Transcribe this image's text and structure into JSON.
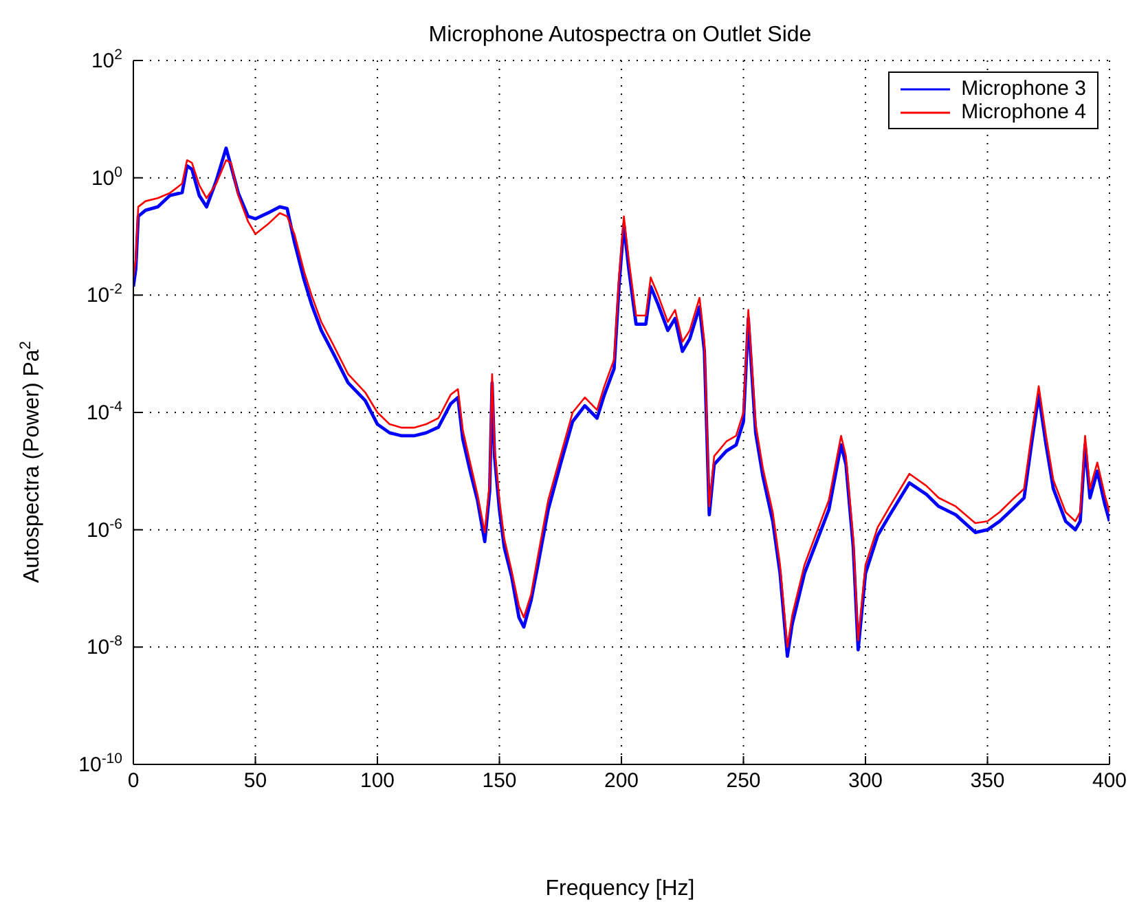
{
  "chart_data": {
    "type": "line",
    "title": "Microphone Autospectra on Outlet Side",
    "xlabel": "Frequency [Hz]",
    "ylabel": "Autospectra (Power) Pa$^{2}$",
    "log": "y",
    "grid": true,
    "legend": "top right",
    "marker": "none",
    "line_style": "solid",
    "xlim": [
      0,
      400
    ],
    "xticks": [
      0,
      50,
      100,
      150,
      200,
      250,
      300,
      350,
      400
    ],
    "ylim": [
      1e-10,
      100
    ],
    "yticks": [
      {
        "value": 1e-10,
        "label": "10$^{-10}$"
      },
      {
        "value": 1e-08,
        "label": "10$^{-8}$"
      },
      {
        "value": 1e-06,
        "label": "10$^{-6}$"
      },
      {
        "value": 0.0001,
        "label": "10$^{-4}$"
      },
      {
        "value": 0.01,
        "label": "10$^{-2}$"
      },
      {
        "value": 1,
        "label": "10$^{0}$"
      },
      {
        "value": 100,
        "label": "10$^{2}$"
      }
    ],
    "series": [
      {
        "name": "Microphone 3",
        "color": "#0000ff",
        "x": [
          0,
          1,
          2,
          5,
          10,
          15,
          20,
          22,
          24,
          27,
          30,
          34,
          38,
          40,
          43,
          47,
          50,
          55,
          60,
          63,
          66,
          70,
          73,
          77,
          82,
          88,
          95,
          100,
          105,
          110,
          115,
          120,
          125,
          130,
          133,
          135,
          138,
          141,
          144,
          146,
          147,
          148,
          150,
          152,
          155,
          158,
          160,
          163,
          166,
          170,
          175,
          180,
          185,
          190,
          193,
          197,
          199,
          201,
          203,
          206,
          210,
          212,
          215,
          219,
          222,
          225,
          228,
          232,
          234,
          236,
          238,
          243,
          247,
          250,
          252,
          255,
          258,
          262,
          265,
          268,
          270,
          275,
          280,
          285,
          290,
          292,
          295,
          297,
          300,
          305,
          310,
          318,
          325,
          330,
          337,
          345,
          350,
          355,
          360,
          365,
          368,
          371,
          374,
          377,
          382,
          386,
          388,
          390,
          392,
          395,
          398,
          400
        ],
        "values": [
          0.014,
          0.028,
          0.22,
          0.28,
          0.32,
          0.5,
          0.56,
          1.6,
          1.4,
          0.5,
          0.32,
          0.9,
          3.2,
          1.6,
          0.55,
          0.22,
          0.2,
          0.25,
          0.32,
          0.3,
          0.08,
          0.018,
          0.007,
          0.0025,
          0.001,
          0.00032,
          0.00016,
          6.3e-05,
          4.5e-05,
          4e-05,
          4e-05,
          4.5e-05,
          5.6e-05,
          0.00014,
          0.00018,
          3.5e-05,
          1e-05,
          3.2e-06,
          6.3e-07,
          4.5e-06,
          0.00032,
          1.8e-05,
          2.2e-06,
          5e-07,
          1.6e-07,
          3.2e-08,
          2.2e-08,
          6.3e-08,
          2.8e-07,
          2.2e-06,
          1.3e-05,
          7e-05,
          0.00013,
          8e-05,
          0.0002,
          0.00056,
          0.014,
          0.16,
          0.028,
          0.0032,
          0.0032,
          0.014,
          0.007,
          0.0025,
          0.004,
          0.0011,
          0.0018,
          0.0063,
          0.0011,
          1.8e-06,
          1.3e-05,
          2.2e-05,
          2.8e-05,
          7e-05,
          0.004,
          4.5e-05,
          8e-06,
          1.4e-06,
          1.8e-07,
          7e-09,
          2.5e-08,
          1.8e-07,
          6.3e-07,
          2.2e-06,
          2.8e-05,
          1.3e-05,
          5e-07,
          9e-09,
          1.8e-07,
          8e-07,
          1.8e-06,
          6.3e-06,
          4e-06,
          2.5e-06,
          1.8e-06,
          9e-07,
          1e-06,
          1.4e-06,
          2.2e-06,
          3.5e-06,
          2.8e-05,
          0.0002,
          2.8e-05,
          5e-06,
          1.4e-06,
          1e-06,
          1.4e-06,
          2.8e-05,
          3.5e-06,
          1e-05,
          2.8e-06,
          1.4e-06
        ]
      },
      {
        "name": "Microphone 4",
        "color": "#ff0000",
        "x": [
          0,
          1,
          2,
          5,
          10,
          15,
          20,
          22,
          24,
          27,
          30,
          34,
          38,
          40,
          43,
          47,
          50,
          55,
          60,
          63,
          66,
          70,
          73,
          77,
          82,
          88,
          95,
          100,
          105,
          110,
          115,
          120,
          125,
          130,
          133,
          135,
          138,
          141,
          144,
          146,
          147,
          148,
          150,
          152,
          155,
          158,
          160,
          163,
          166,
          170,
          175,
          180,
          185,
          190,
          193,
          197,
          199,
          201,
          203,
          206,
          210,
          212,
          215,
          219,
          222,
          225,
          228,
          232,
          234,
          236,
          238,
          243,
          247,
          250,
          252,
          255,
          258,
          262,
          265,
          268,
          270,
          275,
          280,
          285,
          290,
          292,
          295,
          297,
          300,
          305,
          310,
          318,
          325,
          330,
          337,
          345,
          350,
          355,
          360,
          365,
          368,
          371,
          374,
          377,
          382,
          386,
          388,
          390,
          392,
          395,
          398,
          400
        ],
        "values": [
          0.02,
          0.04,
          0.32,
          0.4,
          0.45,
          0.55,
          0.8,
          2,
          1.8,
          0.75,
          0.45,
          0.8,
          2,
          1.8,
          0.5,
          0.18,
          0.11,
          0.16,
          0.25,
          0.22,
          0.11,
          0.025,
          0.01,
          0.0035,
          0.0014,
          0.00045,
          0.00022,
          0.0001,
          6.3e-05,
          5.5e-05,
          5.5e-05,
          6.3e-05,
          8e-05,
          0.0002,
          0.00025,
          5e-05,
          1.4e-05,
          4e-06,
          9e-07,
          6.3e-06,
          0.00045,
          2.5e-05,
          3.2e-06,
          7e-07,
          2e-07,
          5e-08,
          3.2e-08,
          8e-08,
          4e-07,
          3.2e-06,
          1.8e-05,
          0.0001,
          0.00018,
          0.00011,
          0.00028,
          0.0008,
          0.02,
          0.22,
          0.04,
          0.0045,
          0.0045,
          0.02,
          0.01,
          0.0035,
          0.0056,
          0.0016,
          0.0025,
          0.009,
          0.0016,
          2.5e-06,
          1.8e-05,
          3.2e-05,
          4e-05,
          0.0001,
          0.0056,
          6.3e-05,
          1.1e-05,
          2e-06,
          2.5e-07,
          1e-08,
          3.5e-08,
          2.5e-07,
          9e-07,
          3.2e-06,
          4e-05,
          1.8e-05,
          7e-07,
          1.3e-08,
          2.5e-07,
          1.1e-06,
          2.5e-06,
          9e-06,
          5.6e-06,
          3.5e-06,
          2.5e-06,
          1.3e-06,
          1.4e-06,
          2e-06,
          3.2e-06,
          5e-06,
          4e-05,
          0.00028,
          4e-05,
          7e-06,
          2e-06,
          1.4e-06,
          2e-06,
          4e-05,
          5e-06,
          1.4e-05,
          4e-06,
          2e-06
        ]
      }
    ]
  }
}
